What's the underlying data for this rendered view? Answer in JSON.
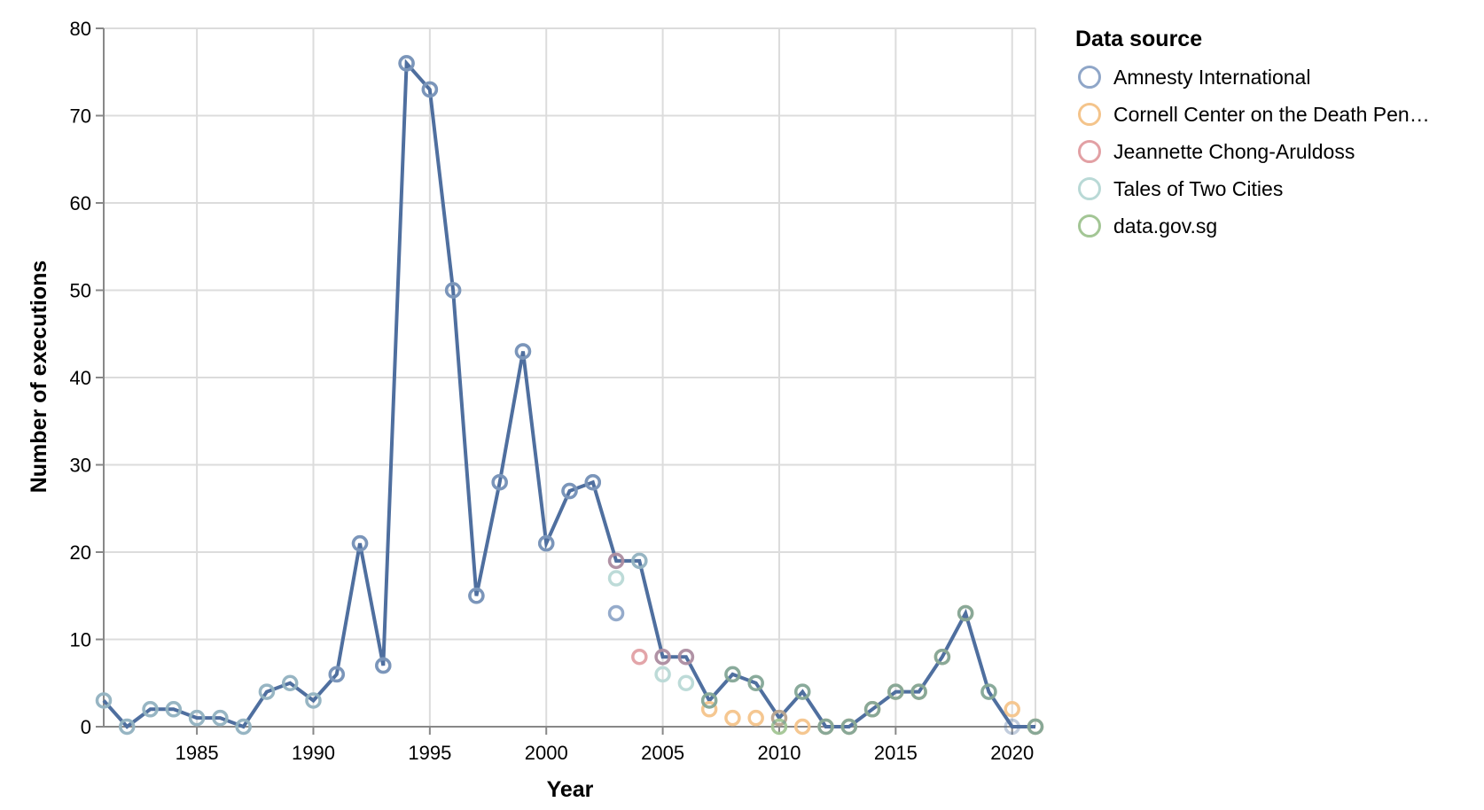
{
  "chart_data": {
    "type": "line",
    "title": "",
    "xlabel": "Year",
    "ylabel": "Number of executions",
    "xlim": [
      1981,
      2021
    ],
    "ylim": [
      0,
      80
    ],
    "x_ticks": [
      1985,
      1990,
      1995,
      2000,
      2005,
      2010,
      2015,
      2020
    ],
    "y_ticks": [
      0,
      10,
      20,
      30,
      40,
      50,
      60,
      70,
      80
    ],
    "grid": true,
    "legend_position": "right",
    "legend_title": "Data source",
    "legend": [
      {
        "name": "Amnesty International",
        "label": "Amnesty International",
        "color": "#8fa6c8"
      },
      {
        "name": "Cornell Center on the Death Penalty",
        "label": "Cornell Center on the Death Pen…",
        "color": "#f4c48b"
      },
      {
        "name": "Jeannette Chong-Aruldoss",
        "label": "Jeannette Chong-Aruldoss",
        "color": "#e2a0a4"
      },
      {
        "name": "Tales of Two Cities",
        "label": "Tales of Two Cities",
        "color": "#b9d9d6"
      },
      {
        "name": "data.gov.sg",
        "label": "data.gov.sg",
        "color": "#a3c695"
      }
    ],
    "line": {
      "color": "#4f6f9f",
      "x": [
        1981,
        1982,
        1983,
        1984,
        1985,
        1986,
        1987,
        1988,
        1989,
        1990,
        1991,
        1992,
        1993,
        1994,
        1995,
        1996,
        1997,
        1998,
        1999,
        2000,
        2001,
        2002,
        2003,
        2004,
        2005,
        2006,
        2007,
        2008,
        2009,
        2010,
        2011,
        2012,
        2013,
        2014,
        2015,
        2016,
        2017,
        2018,
        2019,
        2020,
        2021
      ],
      "y": [
        3,
        0,
        2,
        2,
        1,
        1,
        0,
        4,
        5,
        3,
        6,
        21,
        7,
        76,
        73,
        50,
        15,
        28,
        43,
        21,
        27,
        28,
        19,
        19,
        8,
        8,
        3,
        6,
        5,
        1,
        4,
        0,
        0,
        2,
        4,
        4,
        8,
        13,
        4,
        0,
        0
      ]
    },
    "series": [
      {
        "name": "Tales of Two Cities",
        "color": "#b9d9d6",
        "x": [
          1981,
          1982,
          1983,
          1984,
          1985,
          1986,
          1987,
          1988,
          1989,
          1990,
          1991,
          1992,
          1993,
          1994,
          1995,
          1996,
          1997,
          1998,
          1999,
          2000,
          2001,
          2002,
          2003,
          2004,
          2005,
          2006
        ],
        "y": [
          3,
          0,
          2,
          2,
          1,
          1,
          0,
          4,
          5,
          3,
          6,
          21,
          7,
          76,
          73,
          50,
          15,
          28,
          43,
          21,
          27,
          28,
          17,
          19,
          6,
          5
        ]
      },
      {
        "name": "Amnesty International",
        "color": "#8fa6c8",
        "x": [
          1991,
          1992,
          1993,
          1994,
          1995,
          1996,
          1997,
          1998,
          1999,
          2000,
          2001,
          2002,
          2003
        ],
        "y": [
          6,
          21,
          7,
          76,
          73,
          50,
          15,
          28,
          43,
          21,
          27,
          28,
          13
        ]
      },
      {
        "name": "Jeannette Chong-Aruldoss",
        "color": "#e2a0a4",
        "x": [
          2003,
          2004,
          2005,
          2006
        ],
        "y": [
          19,
          8,
          8,
          8
        ]
      },
      {
        "name": "Cornell Center on the Death Penalty",
        "color": "#f4c48b",
        "x": [
          2007,
          2008,
          2009,
          2010,
          2011,
          2012,
          2013,
          2014,
          2015,
          2016,
          2017,
          2018,
          2020,
          2021
        ],
        "y": [
          2,
          1,
          1,
          1,
          0,
          0,
          0,
          2,
          4,
          4,
          8,
          13,
          2,
          0
        ]
      },
      {
        "name": "data.gov.sg",
        "color": "#a3c695",
        "x": [
          2007,
          2008,
          2009,
          2010,
          2011,
          2012,
          2013,
          2014,
          2015,
          2016,
          2017,
          2018,
          2019,
          2021
        ],
        "y": [
          3,
          6,
          5,
          0,
          4,
          0,
          0,
          2,
          4,
          4,
          8,
          13,
          4,
          0
        ]
      }
    ]
  }
}
